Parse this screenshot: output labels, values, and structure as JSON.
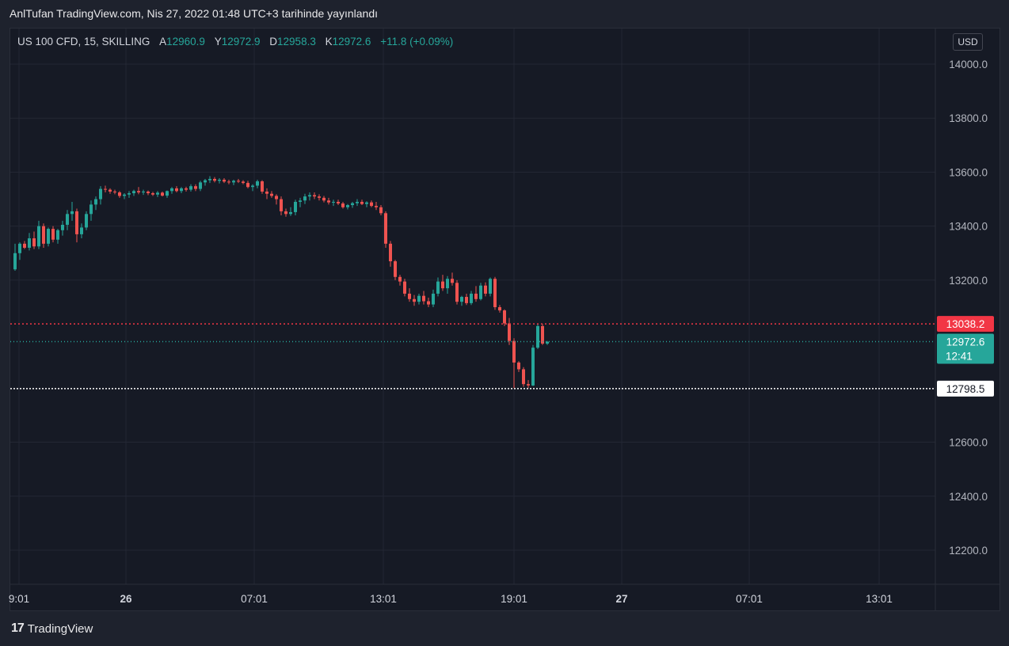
{
  "header": {
    "published": "AnlTufan TradingView.com, Nis 27, 2022 01:48 UTC+3 tarihinde yayınlandı"
  },
  "legend": {
    "symbol": "US 100 CFD, 15, SKILLING",
    "open_label": "A",
    "open": "12960.9",
    "high_label": "Y",
    "high": "12972.9",
    "low_label": "D",
    "low": "12958.3",
    "close_label": "K",
    "close": "12972.6",
    "change": "+11.8 (+0.09%)"
  },
  "currency": "USD",
  "footer": {
    "brand": "TradingView",
    "logo_icon": "tradingview-logo-icon"
  },
  "colors": {
    "up": "#26a69a",
    "down": "#ef5350",
    "bg": "#161a25",
    "grid": "#232734"
  },
  "chart_data": {
    "type": "candlestick",
    "y_ticks": [
      "14000.0",
      "13800.0",
      "13600.0",
      "13400.0",
      "13200.0",
      "12600.0",
      "12400.0",
      "12200.0"
    ],
    "y_range": [
      12120,
      14060
    ],
    "x_ticks": [
      "9:01",
      "26",
      "07:01",
      "13:01",
      "19:01",
      "27",
      "07:01",
      "13:01"
    ],
    "x_ticks_bold": [
      "26",
      "27"
    ],
    "price_labels": [
      {
        "value": "13038.2",
        "price": 13038.2,
        "style": "red-dotted"
      },
      {
        "value": "12972.6",
        "price": 12972.6,
        "style": "teal-dotted",
        "countdown": "12:41"
      },
      {
        "value": "12798.5",
        "price": 12798.5,
        "style": "white-dotted"
      }
    ],
    "candles": [
      [
        13240,
        13335,
        13235,
        13300
      ],
      [
        13300,
        13340,
        13275,
        13335
      ],
      [
        13335,
        13345,
        13315,
        13320
      ],
      [
        13320,
        13375,
        13310,
        13355
      ],
      [
        13355,
        13380,
        13315,
        13325
      ],
      [
        13325,
        13420,
        13315,
        13400
      ],
      [
        13400,
        13410,
        13320,
        13335
      ],
      [
        13335,
        13395,
        13325,
        13390
      ],
      [
        13390,
        13400,
        13340,
        13350
      ],
      [
        13350,
        13390,
        13335,
        13385
      ],
      [
        13385,
        13420,
        13365,
        13405
      ],
      [
        13405,
        13460,
        13385,
        13445
      ],
      [
        13445,
        13490,
        13420,
        13455
      ],
      [
        13455,
        13465,
        13340,
        13370
      ],
      [
        13370,
        13410,
        13355,
        13395
      ],
      [
        13395,
        13455,
        13385,
        13445
      ],
      [
        13445,
        13495,
        13420,
        13480
      ],
      [
        13480,
        13510,
        13460,
        13500
      ],
      [
        13500,
        13548,
        13480,
        13538
      ],
      [
        13538,
        13550,
        13525,
        13535
      ],
      [
        13535,
        13540,
        13520,
        13528
      ],
      [
        13528,
        13535,
        13518,
        13525
      ],
      [
        13525,
        13530,
        13505,
        13512
      ],
      [
        13512,
        13522,
        13500,
        13517
      ],
      [
        13517,
        13530,
        13505,
        13522
      ],
      [
        13522,
        13535,
        13512,
        13530
      ],
      [
        13530,
        13545,
        13518,
        13525
      ],
      [
        13525,
        13535,
        13516,
        13528
      ],
      [
        13528,
        13532,
        13515,
        13522
      ],
      [
        13522,
        13527,
        13512,
        13517
      ],
      [
        13517,
        13530,
        13508,
        13524
      ],
      [
        13524,
        13528,
        13510,
        13513
      ],
      [
        13513,
        13532,
        13505,
        13530
      ],
      [
        13530,
        13545,
        13520,
        13540
      ],
      [
        13540,
        13548,
        13525,
        13530
      ],
      [
        13530,
        13545,
        13522,
        13540
      ],
      [
        13540,
        13546,
        13528,
        13535
      ],
      [
        13535,
        13555,
        13528,
        13548
      ],
      [
        13548,
        13555,
        13530,
        13538
      ],
      [
        13538,
        13568,
        13530,
        13562
      ],
      [
        13562,
        13575,
        13550,
        13570
      ],
      [
        13570,
        13585,
        13560,
        13575
      ],
      [
        13575,
        13582,
        13562,
        13568
      ],
      [
        13568,
        13578,
        13558,
        13572
      ],
      [
        13572,
        13578,
        13560,
        13565
      ],
      [
        13565,
        13572,
        13555,
        13562
      ],
      [
        13562,
        13572,
        13552,
        13568
      ],
      [
        13568,
        13575,
        13560,
        13565
      ],
      [
        13565,
        13570,
        13555,
        13560
      ],
      [
        13560,
        13568,
        13540,
        13545
      ],
      [
        13545,
        13555,
        13530,
        13550
      ],
      [
        13550,
        13572,
        13540,
        13566
      ],
      [
        13566,
        13570,
        13520,
        13528
      ],
      [
        13528,
        13540,
        13500,
        13520
      ],
      [
        13520,
        13530,
        13505,
        13512
      ],
      [
        13512,
        13518,
        13480,
        13500
      ],
      [
        13500,
        13510,
        13440,
        13455
      ],
      [
        13455,
        13465,
        13435,
        13445
      ],
      [
        13445,
        13470,
        13438,
        13452
      ],
      [
        13452,
        13498,
        13440,
        13490
      ],
      [
        13490,
        13505,
        13470,
        13495
      ],
      [
        13495,
        13520,
        13482,
        13510
      ],
      [
        13510,
        13525,
        13495,
        13515
      ],
      [
        13515,
        13525,
        13500,
        13510
      ],
      [
        13510,
        13518,
        13495,
        13505
      ],
      [
        13505,
        13512,
        13488,
        13495
      ],
      [
        13495,
        13505,
        13480,
        13488
      ],
      [
        13488,
        13498,
        13475,
        13490
      ],
      [
        13490,
        13498,
        13478,
        13484
      ],
      [
        13484,
        13490,
        13465,
        13470
      ],
      [
        13470,
        13482,
        13462,
        13478
      ],
      [
        13478,
        13490,
        13468,
        13485
      ],
      [
        13485,
        13500,
        13475,
        13490
      ],
      [
        13490,
        13498,
        13478,
        13482
      ],
      [
        13482,
        13492,
        13470,
        13488
      ],
      [
        13488,
        13495,
        13470,
        13475
      ],
      [
        13475,
        13490,
        13460,
        13470
      ],
      [
        13470,
        13478,
        13440,
        13448
      ],
      [
        13448,
        13455,
        13320,
        13335
      ],
      [
        13335,
        13345,
        13250,
        13270
      ],
      [
        13270,
        13275,
        13200,
        13212
      ],
      [
        13212,
        13220,
        13180,
        13195
      ],
      [
        13195,
        13205,
        13140,
        13150
      ],
      [
        13150,
        13170,
        13120,
        13130
      ],
      [
        13130,
        13145,
        13105,
        13120
      ],
      [
        13120,
        13150,
        13110,
        13142
      ],
      [
        13142,
        13160,
        13110,
        13122
      ],
      [
        13122,
        13135,
        13100,
        13110
      ],
      [
        13110,
        13165,
        13100,
        13150
      ],
      [
        13150,
        13210,
        13140,
        13195
      ],
      [
        13195,
        13220,
        13160,
        13170
      ],
      [
        13170,
        13215,
        13150,
        13205
      ],
      [
        13205,
        13228,
        13180,
        13190
      ],
      [
        13190,
        13200,
        13110,
        13120
      ],
      [
        13120,
        13142,
        13105,
        13138
      ],
      [
        13138,
        13150,
        13108,
        13115
      ],
      [
        13115,
        13160,
        13108,
        13150
      ],
      [
        13150,
        13178,
        13120,
        13130
      ],
      [
        13130,
        13190,
        13125,
        13180
      ],
      [
        13180,
        13192,
        13140,
        13150
      ],
      [
        13150,
        13210,
        13140,
        13205
      ],
      [
        13205,
        13212,
        13090,
        13100
      ],
      [
        13100,
        13108,
        13080,
        13088
      ],
      [
        13088,
        13092,
        13030,
        13040
      ],
      [
        13040,
        13060,
        12960,
        12975
      ],
      [
        12975,
        12985,
        12800,
        12895
      ],
      [
        12895,
        12900,
        12860,
        12870
      ],
      [
        12870,
        12878,
        12805,
        12815
      ],
      [
        12815,
        12830,
        12800,
        12810
      ],
      [
        12810,
        12960,
        12808,
        12950
      ],
      [
        12950,
        13040,
        12945,
        13030
      ],
      [
        13030,
        13038,
        12960,
        12965
      ],
      [
        12965,
        12975,
        12960,
        12972
      ]
    ]
  }
}
